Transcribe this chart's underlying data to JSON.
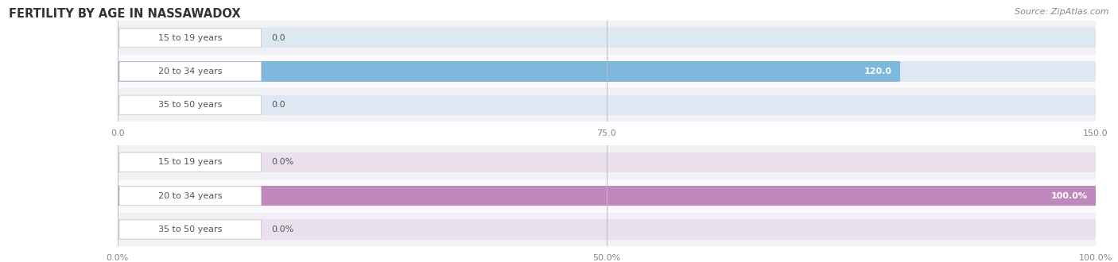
{
  "title": "FERTILITY BY AGE IN NASSAWADOX",
  "source": "Source: ZipAtlas.com",
  "top_chart": {
    "categories": [
      "15 to 19 years",
      "20 to 34 years",
      "35 to 50 years"
    ],
    "values": [
      0.0,
      120.0,
      0.0
    ],
    "xlim": [
      0,
      150.0
    ],
    "xticks": [
      0.0,
      75.0,
      150.0
    ],
    "xticklabels": [
      "0.0",
      "75.0",
      "150.0"
    ],
    "bar_color": "#7EB8DC",
    "bar_bg_color": "#DDE8F2",
    "value_labels": [
      "0.0",
      "120.0",
      "0.0"
    ],
    "label_inside": [
      false,
      true,
      false
    ]
  },
  "bottom_chart": {
    "categories": [
      "15 to 19 years",
      "20 to 34 years",
      "35 to 50 years"
    ],
    "values": [
      0.0,
      100.0,
      0.0
    ],
    "xlim": [
      0,
      100.0
    ],
    "xticks": [
      0.0,
      50.0,
      100.0
    ],
    "xticklabels": [
      "0.0%",
      "50.0%",
      "100.0%"
    ],
    "bar_color": "#C088BC",
    "bar_bg_color": "#EBE0EE",
    "value_labels": [
      "0.0%",
      "100.0%",
      "0.0%"
    ],
    "label_inside": [
      false,
      true,
      false
    ]
  },
  "label_color": "#555555",
  "title_color": "#333333",
  "title_fontsize": 10.5,
  "source_fontsize": 8,
  "tick_fontsize": 8,
  "bar_label_fontsize": 8,
  "category_fontsize": 8,
  "bar_height": 0.6,
  "row_bg_odd": "#F0F0F5",
  "row_bg_even": "#FAFAFD"
}
